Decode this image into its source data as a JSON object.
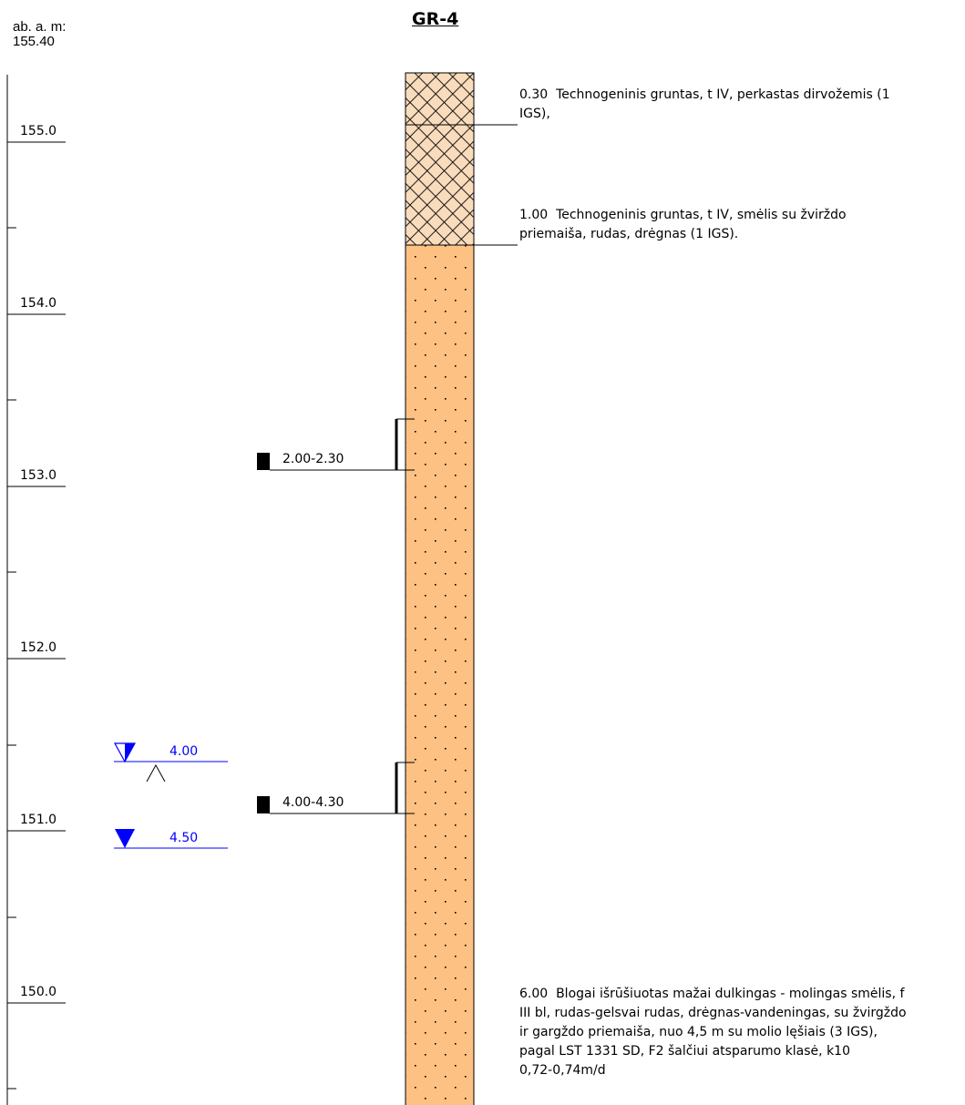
{
  "header": {
    "elevation_caption": "ab. a. m:",
    "elevation_value": "155.40",
    "borehole_id": "GR-4"
  },
  "scale": {
    "ticks": [
      {
        "label": "155.0"
      },
      {
        "label": "154.0"
      },
      {
        "label": "153.0"
      },
      {
        "label": "152.0"
      },
      {
        "label": "151.0"
      },
      {
        "label": "150.0"
      }
    ]
  },
  "layers": [
    {
      "depth": "0.30",
      "description": "Technogeninis gruntas, t IV, perkastas dirvožemis (1",
      "description2": "IGS),"
    },
    {
      "depth": "1.00",
      "description": "Technogeninis gruntas, t IV, smėlis su žvirždo",
      "description2": "priemaiša, rudas, drėgnas (1 IGS)."
    },
    {
      "depth": "6.00",
      "lines": [
        "Blogai išrūšiuotas mažai dulkingas - molingas smėlis, f",
        "III bl, rudas-gelsvai rudas, drėgnas-vandeningas, su žvirgždo",
        "ir gargždo priemaiša, nuo 4,5 m su molio lęšiais (3 IGS),",
        "pagal LST 1331 SD, F2 šalčiui atsparumo klasė, k10",
        "0,72-0,74m/d"
      ]
    }
  ],
  "samples": [
    {
      "label": "2.00-2.30"
    },
    {
      "label": "4.00-4.30"
    }
  ],
  "water_levels": [
    {
      "label": "4.00"
    },
    {
      "label": "4.50"
    }
  ],
  "colors": {
    "fill_fill": "#f9dcbc",
    "sand_fill": "#fdc183",
    "water": "#0000ff"
  }
}
